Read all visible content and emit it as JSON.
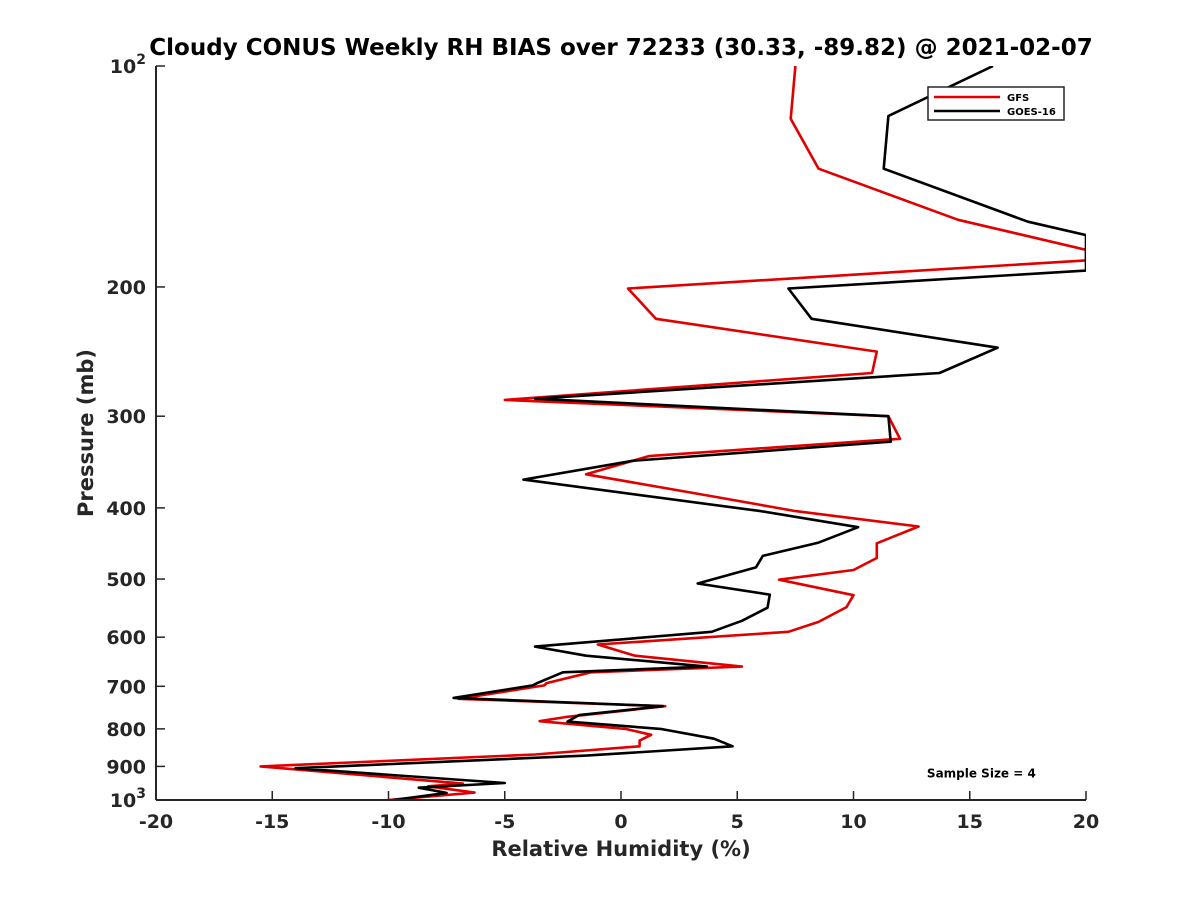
{
  "chart_data": {
    "type": "line",
    "title": "Cloudy CONUS Weekly RH BIAS over 72233 (30.33, -89.82) @ 2021-02-07",
    "xlabel": "Relative Humidity (%)",
    "ylabel": "Pressure (mb)",
    "xlim": [
      -20,
      20
    ],
    "ylim": [
      100,
      1000
    ],
    "yscale": "log",
    "y_reversed": true,
    "grid": false,
    "legend_location": "top-right",
    "x_ticks": [
      "-20",
      "-15",
      "-10",
      "-5",
      "0",
      "5",
      "10",
      "15",
      "20"
    ],
    "y_ticks": [
      {
        "value": 100,
        "base": "10",
        "exp": "2"
      },
      {
        "value": 200,
        "label": "200"
      },
      {
        "value": 300,
        "label": "300"
      },
      {
        "value": 400,
        "label": "400"
      },
      {
        "value": 500,
        "label": "500"
      },
      {
        "value": 600,
        "label": "600"
      },
      {
        "value": 700,
        "label": "700"
      },
      {
        "value": 800,
        "label": "800"
      },
      {
        "value": 900,
        "label": "900"
      },
      {
        "value": 1000,
        "base": "10",
        "exp": "3"
      }
    ],
    "series": [
      {
        "name": "GFS",
        "color": "#e00000",
        "points": [
          [
            7.5,
            100
          ],
          [
            7.3,
            118
          ],
          [
            8.5,
            138
          ],
          [
            14.5,
            162
          ],
          [
            20,
            178
          ],
          [
            20,
            184
          ],
          [
            0.3,
            201
          ],
          [
            1.5,
            221
          ],
          [
            11,
            245
          ],
          [
            10.8,
            262
          ],
          [
            -5,
            285
          ],
          [
            11.5,
            300
          ],
          [
            12,
            322
          ],
          [
            1.2,
            340
          ],
          [
            -1.5,
            360
          ],
          [
            4,
            386
          ],
          [
            7.5,
            404
          ],
          [
            12.8,
            424
          ],
          [
            11,
            447
          ],
          [
            11,
            468
          ],
          [
            10,
            486
          ],
          [
            6.8,
            501
          ],
          [
            10,
            526
          ],
          [
            9.7,
            546
          ],
          [
            8.5,
            572
          ],
          [
            7.2,
            590
          ],
          [
            -1,
            614
          ],
          [
            0.6,
            636
          ],
          [
            5.2,
            658
          ],
          [
            -1.3,
            670
          ],
          [
            -3.2,
            693
          ],
          [
            -3.3,
            698
          ],
          [
            -7,
            728
          ],
          [
            1.9,
            745
          ],
          [
            -2.4,
            771
          ],
          [
            -3.5,
            781
          ],
          [
            0.2,
            800
          ],
          [
            1.3,
            815
          ],
          [
            0.8,
            830
          ],
          [
            0.8,
            845
          ],
          [
            -3.7,
            867
          ],
          [
            -15.5,
            900
          ],
          [
            -6.8,
            950
          ],
          [
            -8.3,
            958
          ],
          [
            -6.3,
            977
          ],
          [
            -10,
            1000
          ]
        ]
      },
      {
        "name": "GOES-16",
        "color": "#000000",
        "points": [
          [
            16,
            100
          ],
          [
            11.5,
            117
          ],
          [
            11.3,
            138
          ],
          [
            17.5,
            163
          ],
          [
            20,
            170
          ],
          [
            20,
            190
          ],
          [
            7.2,
            201
          ],
          [
            8.2,
            221
          ],
          [
            16.2,
            242
          ],
          [
            13.7,
            262
          ],
          [
            -3.7,
            284
          ],
          [
            11.5,
            300
          ],
          [
            11.6,
            325
          ],
          [
            0.5,
            345
          ],
          [
            -4.2,
            366
          ],
          [
            6,
            404
          ],
          [
            10.2,
            425
          ],
          [
            8.5,
            446
          ],
          [
            6.1,
            465
          ],
          [
            5.8,
            482
          ],
          [
            3.3,
            507
          ],
          [
            6.4,
            525
          ],
          [
            6.3,
            547
          ],
          [
            5.2,
            570
          ],
          [
            3.9,
            590
          ],
          [
            -3.7,
            618
          ],
          [
            -1.5,
            636
          ],
          [
            3.7,
            658
          ],
          [
            -2.5,
            670
          ],
          [
            -3.6,
            693
          ],
          [
            -3.8,
            698
          ],
          [
            -7.2,
            726
          ],
          [
            1.8,
            745
          ],
          [
            -1.8,
            766
          ],
          [
            -2.3,
            782
          ],
          [
            1.7,
            800
          ],
          [
            4,
            825
          ],
          [
            4.8,
            845
          ],
          [
            -1.5,
            870
          ],
          [
            -14,
            905
          ],
          [
            -5,
            948
          ],
          [
            -8.7,
            962
          ],
          [
            -7.5,
            978
          ],
          [
            -9.8,
            1000
          ]
        ]
      }
    ],
    "annotations": [
      {
        "text": "Sample Size = 4",
        "x": 15.5,
        "y": 920
      }
    ]
  }
}
